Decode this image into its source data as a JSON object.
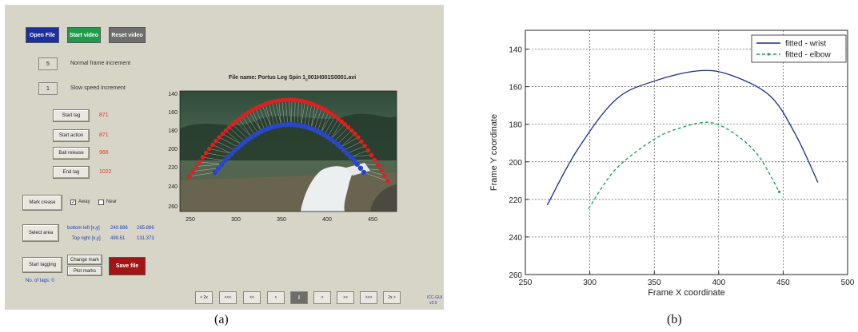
{
  "gui": {
    "buttons": {
      "open_file": "Open File",
      "start_video": "Start video",
      "reset_video": "Reset video",
      "start_tag": "Start tag",
      "start_action": "Start action",
      "ball_release": "Ball release",
      "end_tag": "End tag",
      "mark_crease": "Mark crease",
      "select_area": "Select area",
      "start_tagging": "Start tagging",
      "change_mark": "Change mark",
      "plot_marks": "Plot marks",
      "save_file": "Save file"
    },
    "normal_frame_increment": {
      "value": "5",
      "label": "Normal frame increment"
    },
    "slow_speed_increment": {
      "value": "1",
      "label": "Slow speed increment"
    },
    "tag_values": {
      "start_tag": "871",
      "start_action": "871",
      "ball_release": "966",
      "end_tag": "1022"
    },
    "crease": {
      "away_label": "Away",
      "near_label": "Near",
      "away_checked": "✓"
    },
    "area": {
      "bottom_left_label": "bottom left [x,y]",
      "bottom_left_x": "240.886",
      "bottom_left_y": "265.886",
      "top_right_label": "Top right [x,y]",
      "top_right_x": "499.51",
      "top_right_y": "131.373"
    },
    "tag_count": "No. of tags: 0",
    "video": {
      "file_name_prefix": "File name:  Portus Leg Spin 1",
      "file_name_sub": "c",
      "file_name_suffix": "001H001S0001.avi",
      "y_ticks": [
        "140",
        "160",
        "180",
        "200",
        "220",
        "240",
        "260"
      ],
      "x_ticks": [
        "250",
        "300",
        "350",
        "400",
        "450"
      ]
    },
    "nav": [
      "< 2x",
      "<<<",
      "<<",
      "<",
      "||",
      ">",
      ">>",
      ">>>",
      "2x >"
    ],
    "version": {
      "line1": "ICC-GUI",
      "line2": "v2.0"
    }
  },
  "captions": {
    "a": "(a)",
    "b": "(b)"
  },
  "colors": {
    "open_file": "#1d2f9c",
    "start_video": "#1f9a4a",
    "reset_video": "#6e6e6e",
    "save_file": "#a31515",
    "wrist": "#1d2c8a",
    "elbow": "#1b9a5a",
    "marker_red": "#e02020",
    "marker_blue": "#2b47c8"
  },
  "chart_data": {
    "type": "line",
    "xlabel": "Frame X coordinate",
    "ylabel": "Frame Y coordinate",
    "xlim": [
      250,
      500
    ],
    "ylim": [
      260,
      130
    ],
    "x_ticks": [
      250,
      300,
      350,
      400,
      450,
      500
    ],
    "y_ticks": [
      140,
      160,
      180,
      200,
      220,
      240,
      260
    ],
    "y_reversed": true,
    "grid": true,
    "legend_position": "top-right",
    "series": [
      {
        "name": "fitted - wrist",
        "style": "solid",
        "color": "#1d2c8a",
        "x": [
          267,
          290,
          320,
          350,
          385,
          410,
          440,
          460,
          477
        ],
        "y": [
          223,
          194,
          167,
          157,
          151.5,
          154,
          165,
          186,
          211
        ]
      },
      {
        "name": "fitted - elbow",
        "style": "dashed",
        "color": "#1b9a5a",
        "x": [
          299,
          320,
          350,
          370,
          392,
          410,
          430,
          447
        ],
        "y": [
          225,
          204,
          188,
          182,
          179,
          184,
          196,
          216
        ]
      }
    ]
  }
}
